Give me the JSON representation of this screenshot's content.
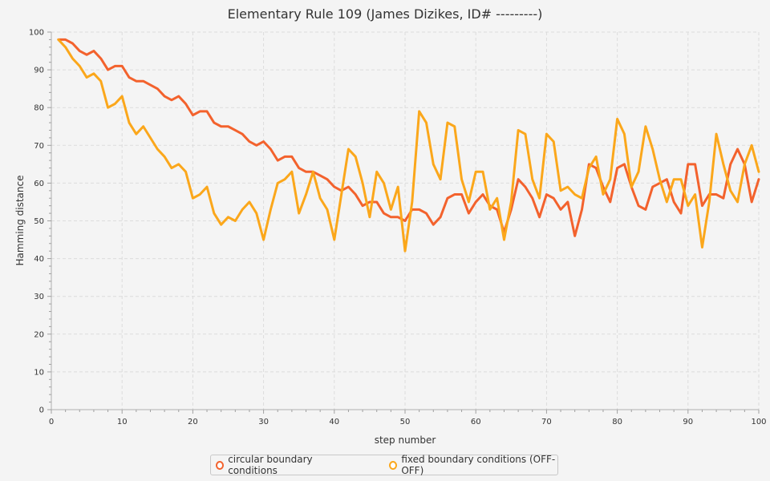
{
  "chart_data": {
    "type": "line",
    "title": "Elementary Rule 109 (James Dizikes, ID# ---------)",
    "xlabel": "step number",
    "ylabel": "Hamming distance",
    "xlim": [
      0,
      100
    ],
    "ylim": [
      0,
      100
    ],
    "xticks": [
      0,
      10,
      20,
      30,
      40,
      50,
      60,
      70,
      80,
      90,
      100
    ],
    "yticks": [
      0,
      10,
      20,
      30,
      40,
      50,
      60,
      70,
      80,
      90,
      100
    ],
    "grid": true,
    "legend_position": "bottom",
    "x": [
      1,
      2,
      3,
      4,
      5,
      6,
      7,
      8,
      9,
      10,
      11,
      12,
      13,
      14,
      15,
      16,
      17,
      18,
      19,
      20,
      21,
      22,
      23,
      24,
      25,
      26,
      27,
      28,
      29,
      30,
      31,
      32,
      33,
      34,
      35,
      36,
      37,
      38,
      39,
      40,
      41,
      42,
      43,
      44,
      45,
      46,
      47,
      48,
      49,
      50,
      51,
      52,
      53,
      54,
      55,
      56,
      57,
      58,
      59,
      60,
      61,
      62,
      63,
      64,
      65,
      66,
      67,
      68,
      69,
      70,
      71,
      72,
      73,
      74,
      75,
      76,
      77,
      78,
      79,
      80,
      81,
      82,
      83,
      84,
      85,
      86,
      87,
      88,
      89,
      90,
      91,
      92,
      93,
      94,
      95,
      96,
      97,
      98,
      99,
      100
    ],
    "series": [
      {
        "name": "circular boundary conditions",
        "color": "#f3622d",
        "values": [
          98,
          98,
          97,
          95,
          94,
          95,
          93,
          90,
          91,
          91,
          88,
          87,
          87,
          86,
          85,
          83,
          82,
          83,
          81,
          78,
          79,
          79,
          76,
          75,
          75,
          74,
          73,
          71,
          70,
          71,
          69,
          66,
          67,
          67,
          64,
          63,
          63,
          62,
          61,
          59,
          58,
          59,
          57,
          54,
          55,
          55,
          52,
          51,
          51,
          50,
          53,
          53,
          52,
          49,
          51,
          56,
          57,
          57,
          52,
          55,
          57,
          54,
          53,
          47,
          53,
          61,
          59,
          56,
          51,
          57,
          56,
          53,
          55,
          46,
          53,
          65,
          64,
          59,
          55,
          64,
          65,
          59,
          54,
          53,
          59,
          60,
          61,
          55,
          52,
          65,
          65,
          54,
          57,
          57,
          56,
          65,
          69,
          65,
          55,
          61
        ]
      },
      {
        "name": "fixed boundary conditions (OFF-OFF)",
        "color": "#fba71b",
        "values": [
          98,
          96,
          93,
          91,
          88,
          89,
          87,
          80,
          81,
          83,
          76,
          73,
          75,
          72,
          69,
          67,
          64,
          65,
          63,
          56,
          57,
          59,
          52,
          49,
          51,
          50,
          53,
          55,
          52,
          45,
          53,
          60,
          61,
          63,
          52,
          57,
          63,
          56,
          53,
          45,
          57,
          69,
          67,
          60,
          51,
          63,
          60,
          53,
          59,
          42,
          55,
          79,
          76,
          65,
          61,
          76,
          75,
          61,
          55,
          63,
          63,
          53,
          56,
          45,
          55,
          74,
          73,
          61,
          56,
          73,
          71,
          58,
          59,
          57,
          56,
          64,
          67,
          57,
          61,
          77,
          73,
          59,
          63,
          75,
          69,
          61,
          55,
          61,
          61,
          54,
          57,
          43,
          55,
          73,
          65,
          58,
          55,
          65,
          70,
          63
        ]
      }
    ]
  }
}
